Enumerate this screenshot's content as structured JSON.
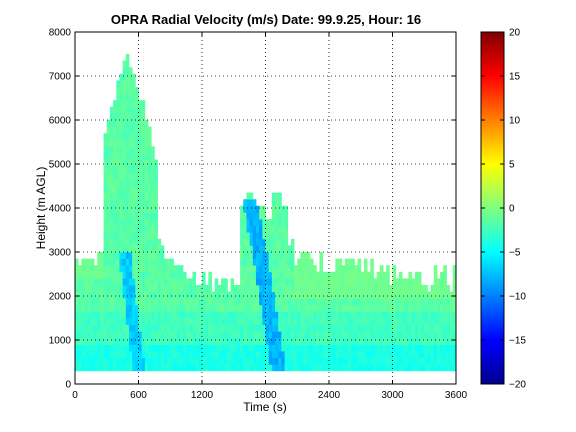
{
  "chart_data": {
    "type": "heatmap",
    "title": "OPRA Radial Velocity (m/s)  Date: 99.9.25, Hour: 16",
    "xlabel": "Time (s)",
    "ylabel": "Height (m AGL)",
    "xlim": [
      0,
      3600
    ],
    "ylim": [
      0,
      8000
    ],
    "x_ticks": [
      0,
      600,
      1200,
      1800,
      2400,
      3000,
      3600
    ],
    "y_ticks": [
      0,
      1000,
      2000,
      3000,
      4000,
      5000,
      6000,
      7000,
      8000
    ],
    "grid": true,
    "colorbar": {
      "colormap": "jet",
      "range": [
        -20,
        20
      ],
      "ticks": [
        -20,
        -15,
        -10,
        -5,
        0,
        5,
        10,
        15,
        20
      ],
      "tick_labels": [
        "−20",
        "−15",
        "−10",
        "−5",
        "0",
        "5",
        "10",
        "15",
        "20"
      ]
    },
    "shown_value_range": [
      -8,
      0
    ],
    "regions": [
      {
        "x": [
          0,
          3600
        ],
        "y": [
          300,
          800
        ],
        "value": -4
      },
      {
        "x": [
          0,
          3600
        ],
        "y": [
          800,
          1000
        ],
        "value": -3
      },
      {
        "x": [
          0,
          3600
        ],
        "y": [
          1000,
          1500
        ],
        "value": -2
      },
      {
        "x": [
          0,
          3600
        ],
        "y": [
          1500,
          2000
        ],
        "value": -1.5
      },
      {
        "x": [
          0,
          1200
        ],
        "y": [
          2000,
          3000
        ],
        "value": -2.5
      },
      {
        "x": [
          200,
          800
        ],
        "y": [
          3000,
          5100
        ],
        "value": -3.5
      },
      {
        "x": [
          450,
          750
        ],
        "y": [
          300,
          3000
        ],
        "value": -6
      },
      {
        "x": [
          1550,
          2050
        ],
        "y": [
          300,
          4200
        ],
        "value": -6
      },
      {
        "x": [
          2050,
          3600
        ],
        "y": [
          2000,
          2600
        ],
        "value": -1
      }
    ]
  }
}
